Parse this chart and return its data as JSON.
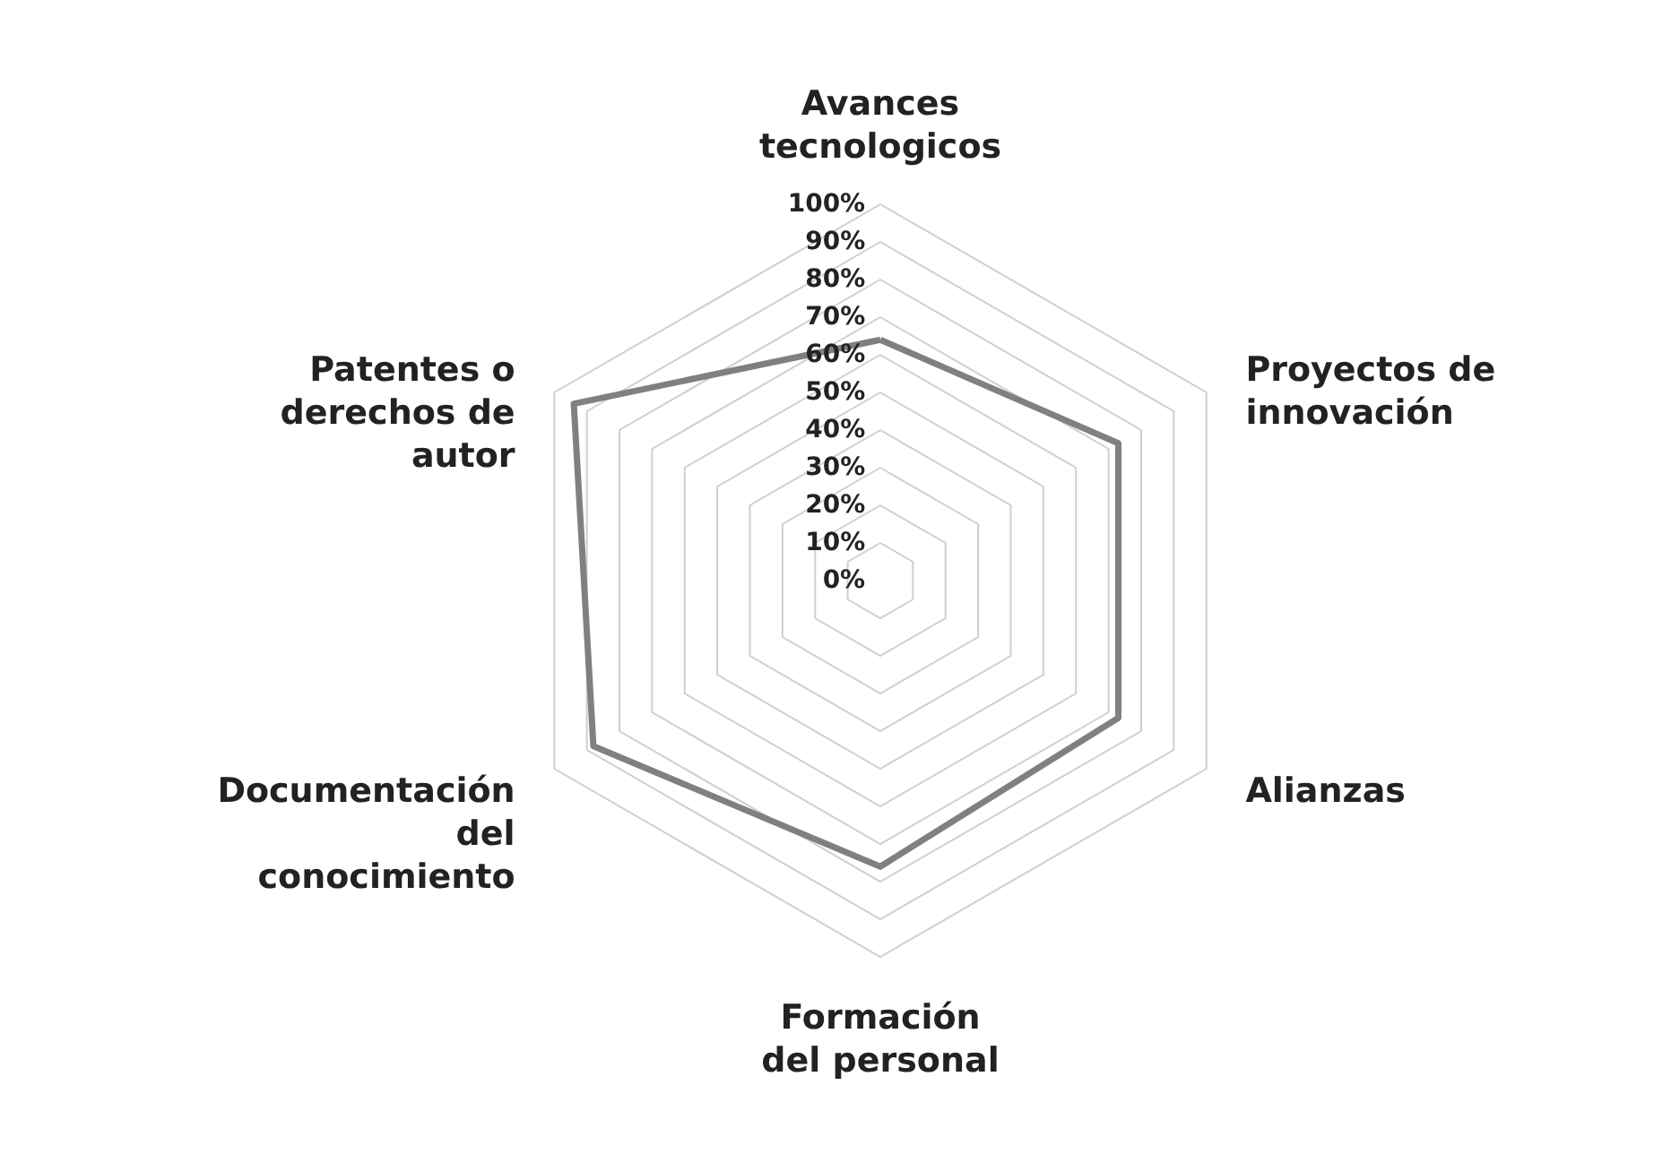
{
  "chart_data": {
    "type": "radar",
    "categories": [
      "Avances tecnologicos",
      "Proyectos de innovación",
      "Alianzas",
      "Formación del personal",
      "Documentación del conocimiento",
      "Patentes o derechos de autor"
    ],
    "series": [
      {
        "color": "#808080",
        "values": [
          64,
          73,
          73,
          76,
          88,
          94
        ]
      }
    ],
    "ylim": [
      0,
      100
    ],
    "yticks": [
      {
        "value": 0,
        "label": "0%"
      },
      {
        "value": 10,
        "label": "10%"
      },
      {
        "value": 20,
        "label": "20%"
      },
      {
        "value": 30,
        "label": "30%"
      },
      {
        "value": 40,
        "label": "40%"
      },
      {
        "value": 50,
        "label": "50%"
      },
      {
        "value": 60,
        "label": "60%"
      },
      {
        "value": 70,
        "label": "70%"
      },
      {
        "value": 80,
        "label": "80%"
      },
      {
        "value": 90,
        "label": "90%"
      },
      {
        "value": 100,
        "label": "100%"
      }
    ],
    "grid": true
  }
}
